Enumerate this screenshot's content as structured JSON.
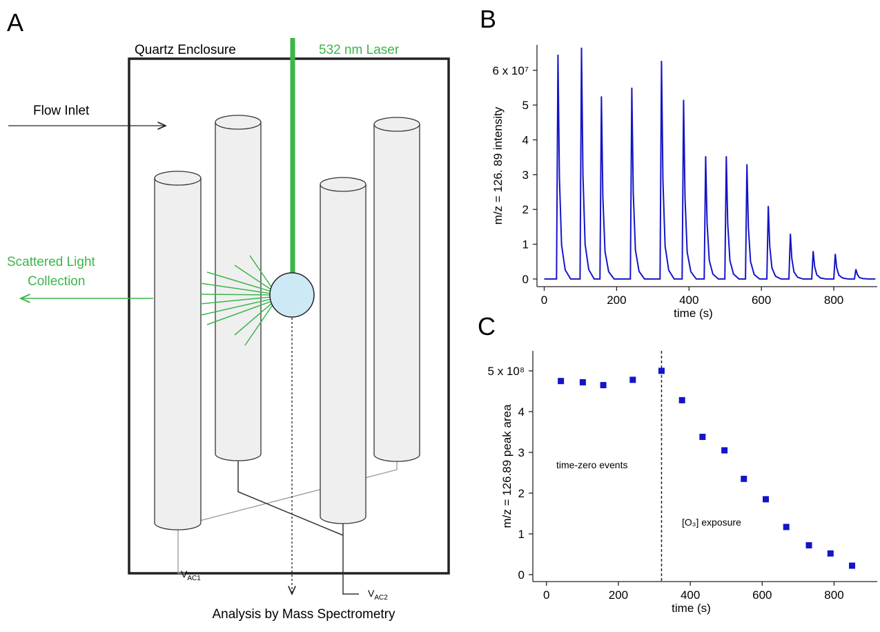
{
  "panel_a": {
    "label": "A",
    "enclosure": "Quartz Enclosure",
    "laser": "532 nm Laser",
    "flow_inlet": "Flow Inlet",
    "scattered": [
      "Scattered Light",
      "Collection"
    ],
    "vac1": {
      "main": "V",
      "sub": "AC1"
    },
    "vac2": {
      "main": "V",
      "sub": "AC2"
    },
    "analysis": "Analysis by Mass Spectrometry"
  },
  "chart_data": [
    {
      "type": "line",
      "panel_label": "B",
      "x_label": "time (s)",
      "y_label": "m/z = 126. 89 intensity",
      "color": "#1414c8",
      "x": [
        0,
        34,
        38,
        42,
        48,
        58,
        73,
        99,
        103,
        107,
        113,
        123,
        138,
        154,
        158,
        162,
        168,
        178,
        193,
        238,
        242,
        246,
        252,
        262,
        277,
        320,
        324,
        328,
        334,
        344,
        359,
        381,
        385,
        389,
        395,
        405,
        420,
        442,
        446,
        450,
        456,
        466,
        481,
        499,
        503,
        507,
        513,
        523,
        538,
        556,
        560,
        564,
        570,
        580,
        595,
        615,
        619,
        623,
        629,
        639,
        654,
        676,
        680,
        684,
        690,
        700,
        715,
        739,
        743,
        747,
        753,
        763,
        778,
        800,
        804,
        808,
        814,
        824,
        839,
        857,
        861,
        865,
        871,
        881,
        896,
        915
      ],
      "values": [
        0,
        0,
        6.45,
        2.9,
        0.97,
        0.26,
        0,
        0,
        6.65,
        2.99,
        1.0,
        0.27,
        0,
        0,
        5.25,
        2.36,
        0.79,
        0.21,
        0,
        0,
        5.5,
        2.48,
        0.83,
        0.22,
        0,
        0,
        6.27,
        2.82,
        0.94,
        0.25,
        0,
        0,
        5.15,
        2.32,
        0.77,
        0.21,
        0,
        0,
        3.53,
        1.59,
        0.53,
        0.14,
        0,
        0,
        3.53,
        1.59,
        0.53,
        0.14,
        0,
        0,
        3.3,
        1.49,
        0.5,
        0.13,
        0,
        0,
        2.1,
        0.95,
        0.32,
        0.08,
        0,
        0,
        1.3,
        0.59,
        0.2,
        0.05,
        0,
        0,
        0.8,
        0.36,
        0.12,
        0.03,
        0,
        0,
        0.72,
        0.32,
        0.11,
        0.03,
        0,
        0,
        0.28,
        0.13,
        0.04,
        0.01,
        0,
        0
      ],
      "xlim": [
        -20,
        920
      ],
      "ylim": [
        -0.22,
        6.73
      ],
      "xticks": [
        0,
        200,
        400,
        600,
        800
      ],
      "yticks": [
        0,
        1,
        2,
        3,
        4,
        5,
        {
          "value": 6,
          "label": "6 x 10⁷"
        }
      ]
    },
    {
      "type": "scatter",
      "panel_label": "C",
      "x_label": "time (s)",
      "y_label": "m/z = 126.89 peak area",
      "color": "#1414c8",
      "x": [
        40,
        101,
        158,
        240,
        320,
        377,
        434,
        495,
        549,
        610,
        667,
        730,
        790,
        850
      ],
      "values": [
        4.75,
        4.72,
        4.65,
        4.78,
        5.0,
        4.28,
        3.38,
        3.05,
        2.35,
        1.85,
        1.17,
        0.72,
        0.52,
        0.22
      ],
      "xlim": [
        -38,
        920
      ],
      "ylim": [
        -0.17,
        5.49
      ],
      "xticks": [
        0,
        200,
        400,
        600,
        800
      ],
      "yticks": [
        0,
        1,
        2,
        3,
        4,
        {
          "value": 5,
          "label": "5 x 10⁸"
        }
      ],
      "vline": 320,
      "annotations": [
        "time-zero events",
        "[O₃] exposure"
      ]
    }
  ]
}
